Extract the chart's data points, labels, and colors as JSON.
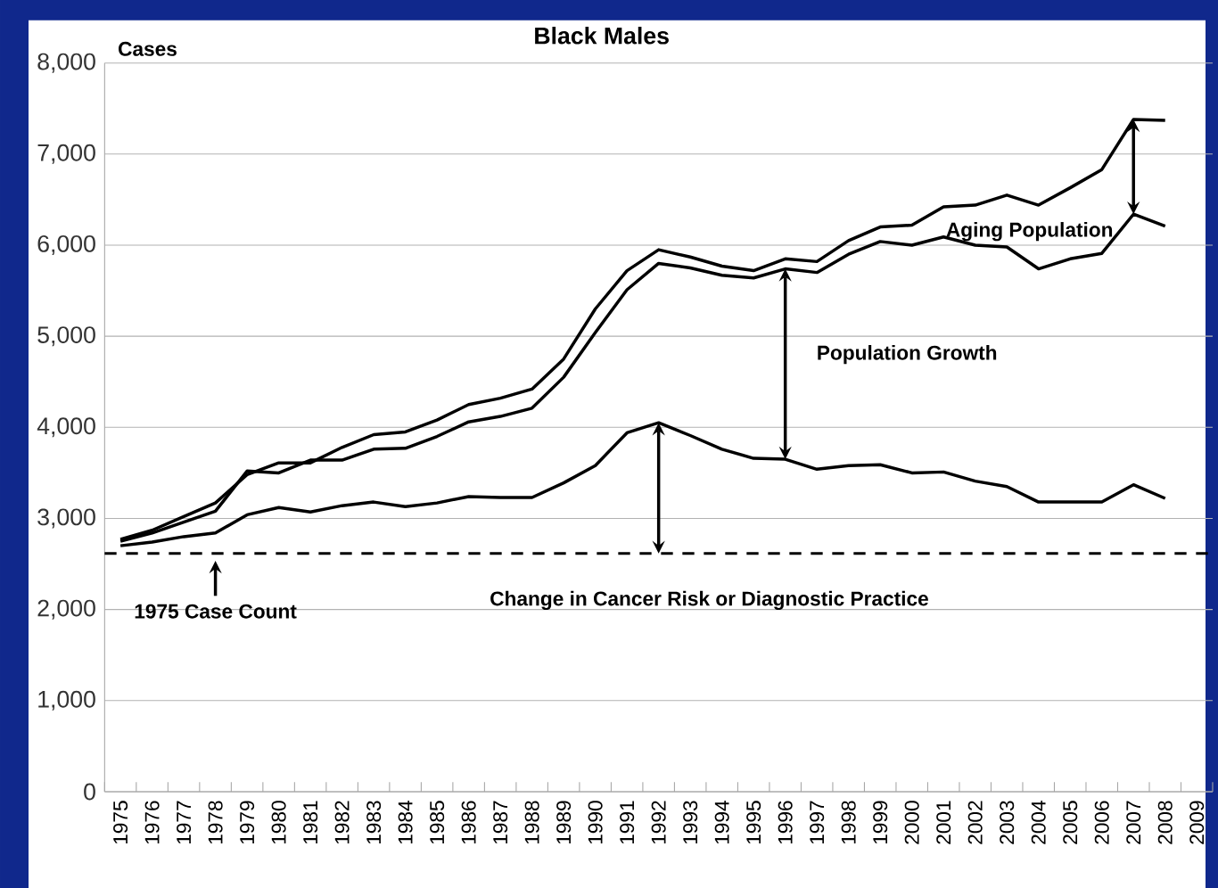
{
  "chart_data": {
    "type": "line",
    "title": "Black Males",
    "ylabel": "Cases",
    "categories": [
      "1975",
      "1976",
      "1977",
      "1978",
      "1979",
      "1980",
      "1981",
      "1982",
      "1983",
      "1984",
      "1985",
      "1986",
      "1987",
      "1988",
      "1989",
      "1990",
      "1991",
      "1992",
      "1993",
      "1994",
      "1995",
      "1996",
      "1997",
      "1998",
      "1999",
      "2000",
      "2001",
      "2002",
      "2003",
      "2004",
      "2005",
      "2006",
      "2007",
      "2008",
      "2009"
    ],
    "series": [
      {
        "color": "#000000",
        "values": [
          2770,
          2870,
          3020,
          3170,
          3480,
          3610,
          3610,
          3780,
          3920,
          3950,
          4080,
          4250,
          4320,
          4420,
          4750,
          5300,
          5720,
          5950,
          5870,
          5770,
          5720,
          5850,
          5820,
          6050,
          6200,
          6220,
          6420,
          6440,
          6550,
          6440,
          6630,
          6830,
          7380,
          7370,
          null
        ]
      },
      {
        "color": "#000000",
        "values": [
          2750,
          2840,
          2960,
          3080,
          3520,
          3500,
          3640,
          3640,
          3760,
          3770,
          3900,
          4060,
          4120,
          4210,
          4550,
          5040,
          5510,
          5800,
          5750,
          5670,
          5640,
          5740,
          5700,
          5900,
          6040,
          6000,
          6090,
          6000,
          5980,
          5740,
          5850,
          5910,
          6340,
          6210,
          null
        ]
      },
      {
        "color": "#000000",
        "values": [
          2700,
          2740,
          2800,
          2840,
          3040,
          3120,
          3070,
          3140,
          3180,
          3130,
          3170,
          3240,
          3230,
          3230,
          3390,
          3580,
          3940,
          4050,
          3910,
          3760,
          3660,
          3650,
          3540,
          3580,
          3590,
          3500,
          3510,
          3410,
          3350,
          3180,
          3180,
          3180,
          3370,
          3220,
          null
        ]
      }
    ],
    "ylim": [
      0,
      8000
    ],
    "yticks": [
      0,
      {
        "value": 1000,
        "label": "1,000"
      },
      {
        "value": 2000,
        "label": "2,000"
      },
      {
        "value": 3000,
        "label": "3,000"
      },
      {
        "value": 4000,
        "label": "4,000"
      },
      {
        "value": 5000,
        "label": "5,000"
      },
      {
        "value": 6000,
        "label": "6,000"
      },
      {
        "value": 7000,
        "label": "7,000"
      },
      {
        "value": 8000,
        "label": "8,000"
      }
    ],
    "grid": "y",
    "marker": "none",
    "line_style": "solid",
    "ref_lines": [
      {
        "axis": "y",
        "value": 2615,
        "color": "#000000",
        "line_style": "dashed"
      }
    ],
    "annotations": [
      "1975 Case Count",
      "Change in Cancer Risk or Diagnostic Practice",
      "Population Growth",
      "Aging Population"
    ]
  }
}
